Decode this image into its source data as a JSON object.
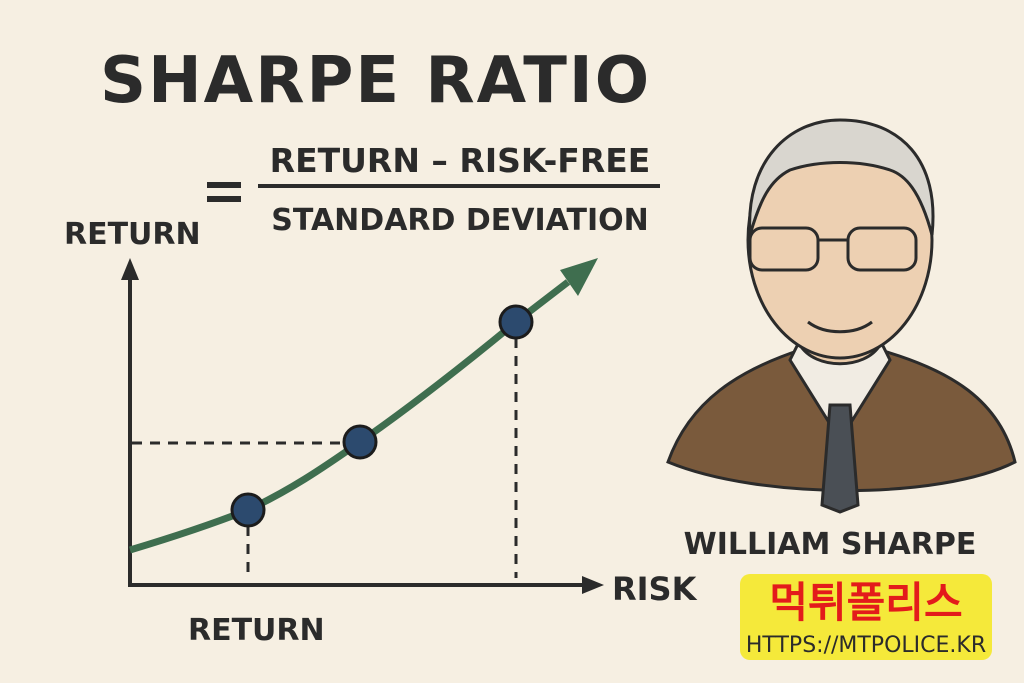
{
  "title": "SHARPE RATIO",
  "formula": {
    "numerator": "RETURN – RISK-FREE",
    "denominator": "STANDARD DEVIATION"
  },
  "graph": {
    "y_axis_label": "RETURN",
    "x_axis_label": "RISK",
    "x_marker_label": "RETURN"
  },
  "portrait": {
    "name": "WILLIAM SHARPE"
  },
  "watermark": {
    "brand": "먹튀폴리스",
    "url": "HTTPS://MTPOLICE.KR"
  }
}
